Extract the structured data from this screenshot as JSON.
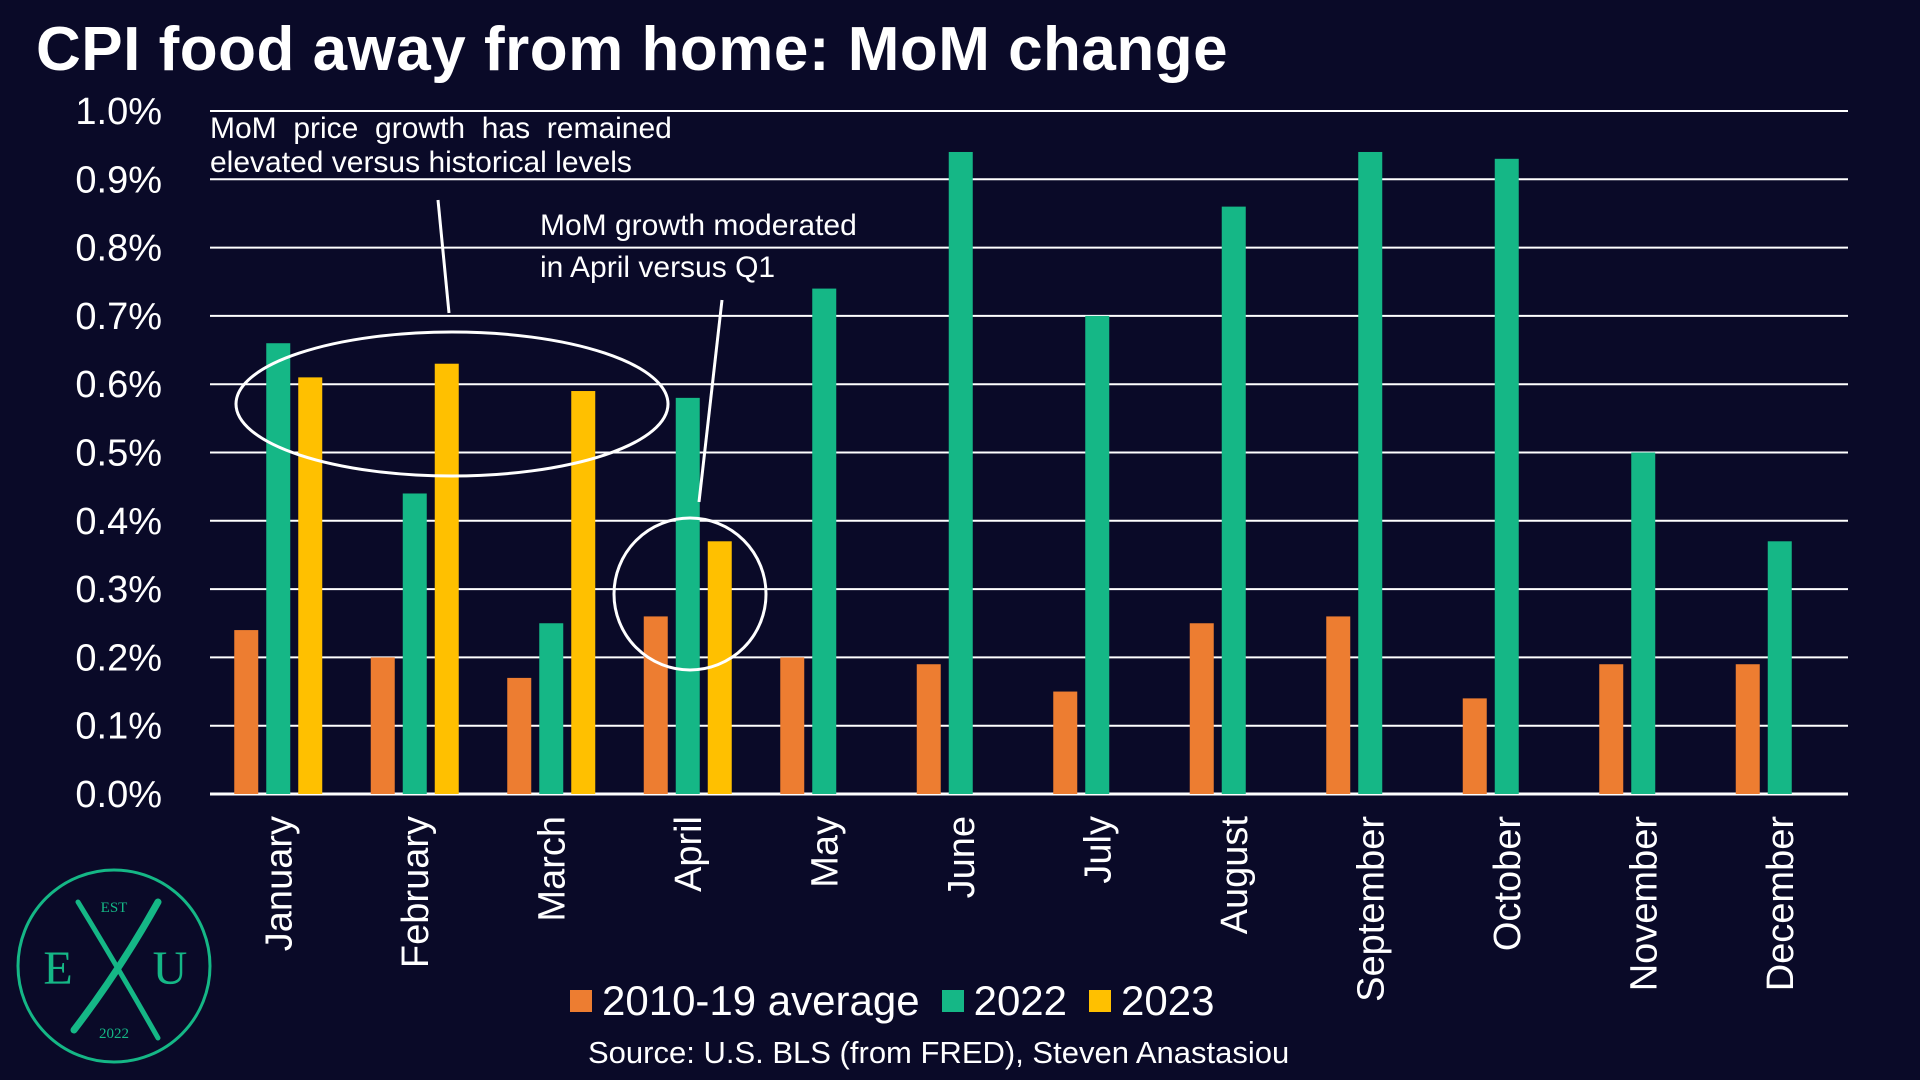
{
  "title": "CPI food away from home: MoM change",
  "source": "Source: U.S. BLS (from FRED), Steven Anastasiou",
  "logo": {
    "top_text": "EST",
    "letters": [
      "E",
      "X",
      "U"
    ],
    "year": "2022",
    "color": "#15b786"
  },
  "annotations": [
    {
      "lines": [
        "MoM  price  growth  has  remained",
        "elevated versus historical levels"
      ]
    },
    {
      "lines": [
        "MoM growth moderated",
        "in April versus Q1"
      ]
    }
  ],
  "chart_data": {
    "type": "bar",
    "title": "CPI food away from home: MoM change",
    "xlabel": "",
    "ylabel": "",
    "categories": [
      "January",
      "February",
      "March",
      "April",
      "May",
      "June",
      "July",
      "August",
      "September",
      "October",
      "November",
      "December"
    ],
    "ylim": [
      0,
      1.0
    ],
    "yticks": [
      0.0,
      0.1,
      0.2,
      0.3,
      0.4,
      0.5,
      0.6,
      0.7,
      0.8,
      0.9,
      1.0
    ],
    "ytick_labels": [
      "0.0%",
      "0.1%",
      "0.2%",
      "0.3%",
      "0.4%",
      "0.5%",
      "0.6%",
      "0.7%",
      "0.8%",
      "0.9%",
      "1.0%"
    ],
    "grid": true,
    "legend_position": "bottom",
    "series": [
      {
        "name": "2010-19 average",
        "color": "#ed7d31",
        "values": [
          0.24,
          0.2,
          0.17,
          0.26,
          0.2,
          0.19,
          0.15,
          0.25,
          0.26,
          0.14,
          0.19,
          0.19
        ]
      },
      {
        "name": "2022",
        "color": "#15b786",
        "values": [
          0.66,
          0.44,
          0.25,
          0.58,
          0.74,
          0.94,
          0.7,
          0.86,
          0.94,
          0.93,
          0.5,
          0.37
        ]
      },
      {
        "name": "2023",
        "color": "#ffc000",
        "values": [
          0.61,
          0.63,
          0.59,
          0.37,
          null,
          null,
          null,
          null,
          null,
          null,
          null,
          null
        ]
      }
    ]
  }
}
